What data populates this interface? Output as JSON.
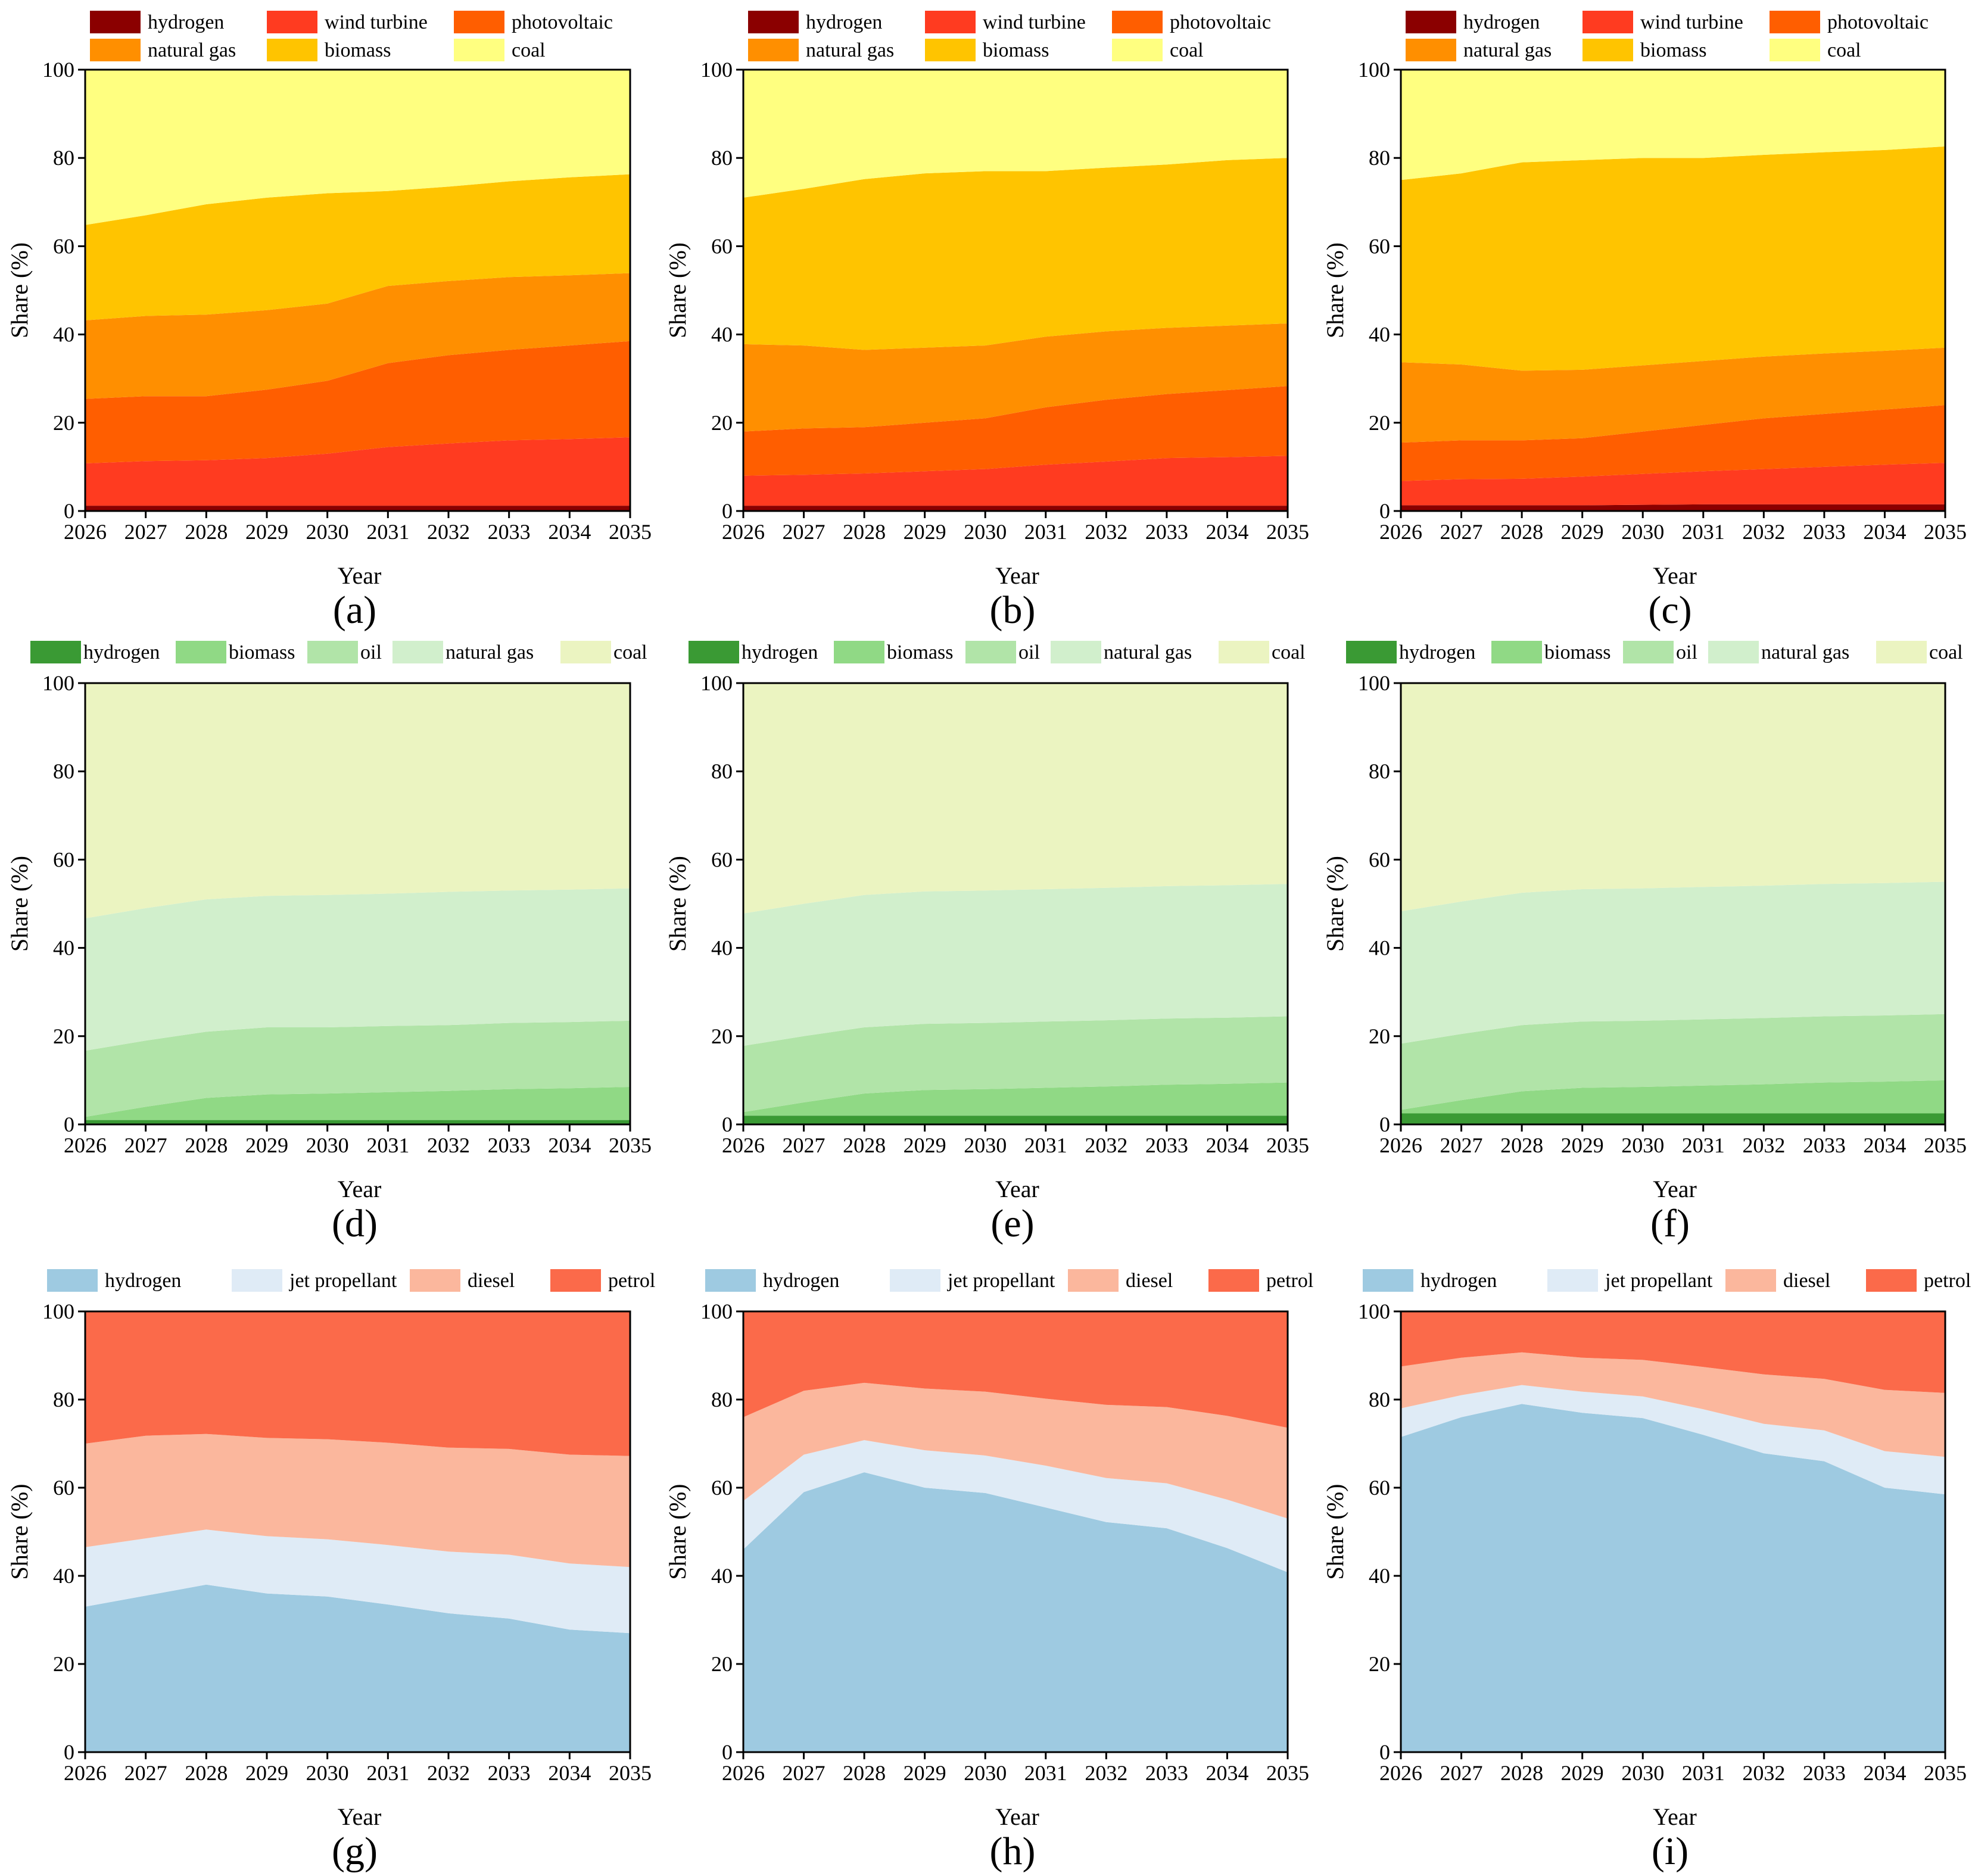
{
  "figure": {
    "panel_labels": [
      "(a)",
      "(b)",
      "(c)",
      "(d)",
      "(e)",
      "(f)",
      "(g)",
      "(h)",
      "(i)"
    ]
  },
  "colors": {
    "electricity": [
      "#8b0000",
      "#ff3b20",
      "#ff5e00",
      "#ff8f00",
      "#ffc400",
      "#ffff80"
    ],
    "heat": [
      "#3a9a34",
      "#90d985",
      "#b1e4a8",
      "#d1efcc",
      "#ebf4c1"
    ],
    "transport": [
      "#9ecae1",
      "#dfebf6",
      "#fbb79d",
      "#fb6a4a"
    ]
  },
  "chart_data": [
    {
      "type": "area",
      "stacked": true,
      "panel": "(a)",
      "x": [
        2026,
        2027,
        2028,
        2029,
        2030,
        2031,
        2032,
        2033,
        2034,
        2035
      ],
      "xlabel": "Year",
      "ylabel": "Share (%)",
      "ylim": [
        0,
        100
      ],
      "yticks": [
        0,
        20,
        40,
        60,
        80,
        100
      ],
      "grid": false,
      "legend": "top",
      "series": [
        {
          "name": "hydrogen",
          "values": [
            1.2,
            1.2,
            1.2,
            1.2,
            1.2,
            1.2,
            1.2,
            1.2,
            1.2,
            1.2
          ]
        },
        {
          "name": "wind turbine",
          "values": [
            9.6,
            10.1,
            10.3,
            10.8,
            11.8,
            13.3,
            14.1,
            14.8,
            15.1,
            15.5
          ]
        },
        {
          "name": "photovoltaic",
          "values": [
            14.6,
            14.7,
            14.5,
            15.5,
            16.5,
            19.0,
            20.0,
            20.5,
            21.2,
            21.8
          ]
        },
        {
          "name": "natural gas",
          "values": [
            17.8,
            18.2,
            18.5,
            18.0,
            17.5,
            17.5,
            16.8,
            16.5,
            15.9,
            15.4
          ]
        },
        {
          "name": "biomass",
          "values": [
            21.6,
            22.8,
            25.0,
            25.5,
            25.0,
            21.5,
            21.4,
            21.7,
            22.2,
            22.4
          ]
        },
        {
          "name": "coal",
          "values": [
            35.2,
            33.0,
            30.5,
            29.0,
            28.0,
            27.5,
            26.5,
            25.3,
            24.4,
            23.7
          ]
        }
      ]
    },
    {
      "type": "area",
      "stacked": true,
      "panel": "(b)",
      "x": [
        2026,
        2027,
        2028,
        2029,
        2030,
        2031,
        2032,
        2033,
        2034,
        2035
      ],
      "xlabel": "Year",
      "ylabel": "Share (%)",
      "ylim": [
        0,
        100
      ],
      "yticks": [
        0,
        20,
        40,
        60,
        80,
        100
      ],
      "grid": false,
      "legend": "top",
      "series": [
        {
          "name": "hydrogen",
          "values": [
            1.2,
            1.2,
            1.2,
            1.2,
            1.2,
            1.2,
            1.2,
            1.2,
            1.2,
            1.2
          ]
        },
        {
          "name": "wind turbine",
          "values": [
            6.8,
            7.0,
            7.3,
            7.8,
            8.3,
            9.3,
            10.0,
            10.8,
            11.0,
            11.3
          ]
        },
        {
          "name": "photovoltaic",
          "values": [
            10.0,
            10.5,
            10.5,
            11.0,
            11.5,
            13.0,
            14.0,
            14.5,
            15.2,
            15.8
          ]
        },
        {
          "name": "natural gas",
          "values": [
            19.8,
            18.8,
            17.5,
            17.0,
            16.5,
            16.0,
            15.5,
            15.0,
            14.6,
            14.2
          ]
        },
        {
          "name": "biomass",
          "values": [
            33.2,
            35.5,
            38.7,
            39.5,
            39.5,
            37.5,
            37.1,
            37.0,
            37.5,
            37.5
          ]
        },
        {
          "name": "coal",
          "values": [
            29.0,
            27.0,
            24.8,
            23.5,
            23.0,
            23.0,
            22.2,
            21.5,
            20.5,
            20.0
          ]
        }
      ]
    },
    {
      "type": "area",
      "stacked": true,
      "panel": "(c)",
      "x": [
        2026,
        2027,
        2028,
        2029,
        2030,
        2031,
        2032,
        2033,
        2034,
        2035
      ],
      "xlabel": "Year",
      "ylabel": "Share (%)",
      "ylim": [
        0,
        100
      ],
      "yticks": [
        0,
        20,
        40,
        60,
        80,
        100
      ],
      "grid": false,
      "legend": "top",
      "series": [
        {
          "name": "hydrogen",
          "values": [
            1.3,
            1.3,
            1.3,
            1.3,
            1.4,
            1.5,
            1.5,
            1.5,
            1.5,
            1.5
          ]
        },
        {
          "name": "wind turbine",
          "values": [
            5.5,
            5.9,
            6.0,
            6.5,
            7.0,
            7.5,
            8.0,
            8.5,
            9.0,
            9.4
          ]
        },
        {
          "name": "photovoltaic",
          "values": [
            8.7,
            8.8,
            8.7,
            8.7,
            9.6,
            10.5,
            11.5,
            12.0,
            12.5,
            13.1
          ]
        },
        {
          "name": "natural gas",
          "values": [
            18.2,
            17.2,
            15.8,
            15.5,
            15.0,
            14.5,
            14.0,
            13.7,
            13.3,
            13.0
          ]
        },
        {
          "name": "biomass",
          "values": [
            41.3,
            43.3,
            47.2,
            47.5,
            47.0,
            46.0,
            45.7,
            45.6,
            45.5,
            45.6
          ]
        },
        {
          "name": "coal",
          "values": [
            25.0,
            23.5,
            21.0,
            20.5,
            20.0,
            20.0,
            19.3,
            18.7,
            18.2,
            17.4
          ]
        }
      ]
    },
    {
      "type": "area",
      "stacked": true,
      "panel": "(d)",
      "x": [
        2026,
        2027,
        2028,
        2029,
        2030,
        2031,
        2032,
        2033,
        2034,
        2035
      ],
      "xlabel": "Year",
      "ylabel": "Share (%)",
      "ylim": [
        0,
        100
      ],
      "yticks": [
        0,
        20,
        40,
        60,
        80,
        100
      ],
      "grid": false,
      "legend": "top",
      "series": [
        {
          "name": "hydrogen",
          "values": [
            1.0,
            1.0,
            1.0,
            1.0,
            1.0,
            1.0,
            1.0,
            1.0,
            1.0,
            1.0
          ]
        },
        {
          "name": "biomass",
          "values": [
            0.7,
            3.0,
            5.0,
            5.8,
            6.0,
            6.3,
            6.6,
            7.0,
            7.2,
            7.5
          ]
        },
        {
          "name": "oil",
          "values": [
            15.0,
            15.0,
            15.0,
            15.2,
            15.0,
            15.0,
            14.9,
            15.0,
            15.0,
            15.0
          ]
        },
        {
          "name": "natural gas",
          "values": [
            30.0,
            30.0,
            30.0,
            29.8,
            30.0,
            30.0,
            30.2,
            30.0,
            30.0,
            30.0
          ]
        },
        {
          "name": "coal",
          "values": [
            53.3,
            51.0,
            49.0,
            48.2,
            48.0,
            47.7,
            47.3,
            47.0,
            46.8,
            46.5
          ]
        }
      ]
    },
    {
      "type": "area",
      "stacked": true,
      "panel": "(e)",
      "x": [
        2026,
        2027,
        2028,
        2029,
        2030,
        2031,
        2032,
        2033,
        2034,
        2035
      ],
      "xlabel": "Year",
      "ylabel": "Share (%)",
      "ylim": [
        0,
        100
      ],
      "yticks": [
        0,
        20,
        40,
        60,
        80,
        100
      ],
      "grid": false,
      "legend": "top",
      "series": [
        {
          "name": "hydrogen",
          "values": [
            2.0,
            2.0,
            2.0,
            2.0,
            2.0,
            2.0,
            2.0,
            2.0,
            2.0,
            2.0
          ]
        },
        {
          "name": "biomass",
          "values": [
            0.8,
            3.0,
            5.0,
            5.8,
            6.0,
            6.3,
            6.6,
            7.0,
            7.2,
            7.5
          ]
        },
        {
          "name": "oil",
          "values": [
            15.0,
            15.0,
            15.0,
            15.0,
            15.0,
            15.0,
            15.0,
            15.0,
            15.0,
            15.0
          ]
        },
        {
          "name": "natural gas",
          "values": [
            30.0,
            30.0,
            30.0,
            30.0,
            30.0,
            30.0,
            30.0,
            30.0,
            30.0,
            30.0
          ]
        },
        {
          "name": "coal",
          "values": [
            52.2,
            50.0,
            48.0,
            47.2,
            47.0,
            46.7,
            46.4,
            46.0,
            45.8,
            45.5
          ]
        }
      ]
    },
    {
      "type": "area",
      "stacked": true,
      "panel": "(f)",
      "x": [
        2026,
        2027,
        2028,
        2029,
        2030,
        2031,
        2032,
        2033,
        2034,
        2035
      ],
      "xlabel": "Year",
      "ylabel": "Share (%)",
      "ylim": [
        0,
        100
      ],
      "yticks": [
        0,
        20,
        40,
        60,
        80,
        100
      ],
      "grid": false,
      "legend": "top",
      "series": [
        {
          "name": "hydrogen",
          "values": [
            2.5,
            2.5,
            2.5,
            2.5,
            2.5,
            2.5,
            2.5,
            2.5,
            2.5,
            2.5
          ]
        },
        {
          "name": "biomass",
          "values": [
            0.8,
            3.0,
            5.0,
            5.8,
            6.0,
            6.3,
            6.6,
            7.0,
            7.2,
            7.5
          ]
        },
        {
          "name": "oil",
          "values": [
            15.0,
            15.0,
            15.0,
            15.0,
            15.0,
            15.0,
            15.0,
            15.0,
            15.0,
            15.0
          ]
        },
        {
          "name": "natural gas",
          "values": [
            30.0,
            30.0,
            30.0,
            30.0,
            30.0,
            30.0,
            30.0,
            30.0,
            30.0,
            30.0
          ]
        },
        {
          "name": "coal",
          "values": [
            51.7,
            49.5,
            47.5,
            46.7,
            46.5,
            46.2,
            45.9,
            45.5,
            45.3,
            45.0
          ]
        }
      ]
    },
    {
      "type": "area",
      "stacked": true,
      "panel": "(g)",
      "x": [
        2026,
        2027,
        2028,
        2029,
        2030,
        2031,
        2032,
        2033,
        2034,
        2035
      ],
      "xlabel": "Year",
      "ylabel": "Share (%)",
      "ylim": [
        0,
        100
      ],
      "yticks": [
        0,
        20,
        40,
        60,
        80,
        100
      ],
      "grid": false,
      "legend": "top",
      "series": [
        {
          "name": "hydrogen",
          "values": [
            33.0,
            35.5,
            38.0,
            36.0,
            35.3,
            33.5,
            31.5,
            30.3,
            27.8,
            27.0
          ]
        },
        {
          "name": "jet propellant",
          "values": [
            13.5,
            13.0,
            12.5,
            13.0,
            13.0,
            13.5,
            14.0,
            14.5,
            15.0,
            15.0
          ]
        },
        {
          "name": "diesel",
          "values": [
            23.5,
            23.3,
            21.7,
            22.3,
            22.7,
            23.2,
            23.6,
            24.0,
            24.7,
            25.2
          ]
        },
        {
          "name": "petrol",
          "values": [
            30.0,
            28.2,
            27.8,
            28.7,
            29.0,
            29.8,
            30.9,
            31.2,
            32.5,
            32.8
          ]
        }
      ]
    },
    {
      "type": "area",
      "stacked": true,
      "panel": "(h)",
      "x": [
        2026,
        2027,
        2028,
        2029,
        2030,
        2031,
        2032,
        2033,
        2034,
        2035
      ],
      "xlabel": "Year",
      "ylabel": "Share (%)",
      "ylim": [
        0,
        100
      ],
      "yticks": [
        0,
        20,
        40,
        60,
        80,
        100
      ],
      "grid": false,
      "legend": "top",
      "series": [
        {
          "name": "hydrogen",
          "values": [
            46.0,
            59.0,
            63.5,
            60.0,
            58.8,
            55.5,
            52.2,
            50.8,
            46.3,
            40.8
          ]
        },
        {
          "name": "jet propellant",
          "values": [
            11.0,
            8.5,
            7.3,
            8.5,
            8.5,
            9.5,
            10.0,
            10.2,
            11.0,
            12.2
          ]
        },
        {
          "name": "diesel",
          "values": [
            19.0,
            14.5,
            13.0,
            14.0,
            14.5,
            15.2,
            16.6,
            17.3,
            19.0,
            20.6
          ]
        },
        {
          "name": "petrol",
          "values": [
            24.0,
            18.0,
            16.2,
            17.5,
            18.2,
            19.8,
            21.2,
            21.7,
            23.7,
            26.4
          ]
        }
      ]
    },
    {
      "type": "area",
      "stacked": true,
      "panel": "(i)",
      "x": [
        2026,
        2027,
        2028,
        2029,
        2030,
        2031,
        2032,
        2033,
        2034,
        2035
      ],
      "xlabel": "Year",
      "ylabel": "Share (%)",
      "ylim": [
        0,
        100
      ],
      "yticks": [
        0,
        20,
        40,
        60,
        80,
        100
      ],
      "grid": false,
      "legend": "top",
      "series": [
        {
          "name": "hydrogen",
          "values": [
            71.5,
            76.0,
            79.0,
            77.0,
            75.8,
            72.0,
            67.8,
            66.0,
            60.0,
            58.5
          ]
        },
        {
          "name": "jet propellant",
          "values": [
            6.5,
            5.0,
            4.3,
            4.8,
            4.9,
            5.8,
            6.7,
            7.0,
            8.3,
            8.5
          ]
        },
        {
          "name": "diesel",
          "values": [
            9.5,
            8.5,
            7.4,
            7.7,
            8.3,
            9.6,
            11.2,
            11.7,
            13.9,
            14.5
          ]
        },
        {
          "name": "petrol",
          "values": [
            12.5,
            10.5,
            9.3,
            10.5,
            11.0,
            12.6,
            14.3,
            15.3,
            17.8,
            18.5
          ]
        }
      ]
    }
  ]
}
